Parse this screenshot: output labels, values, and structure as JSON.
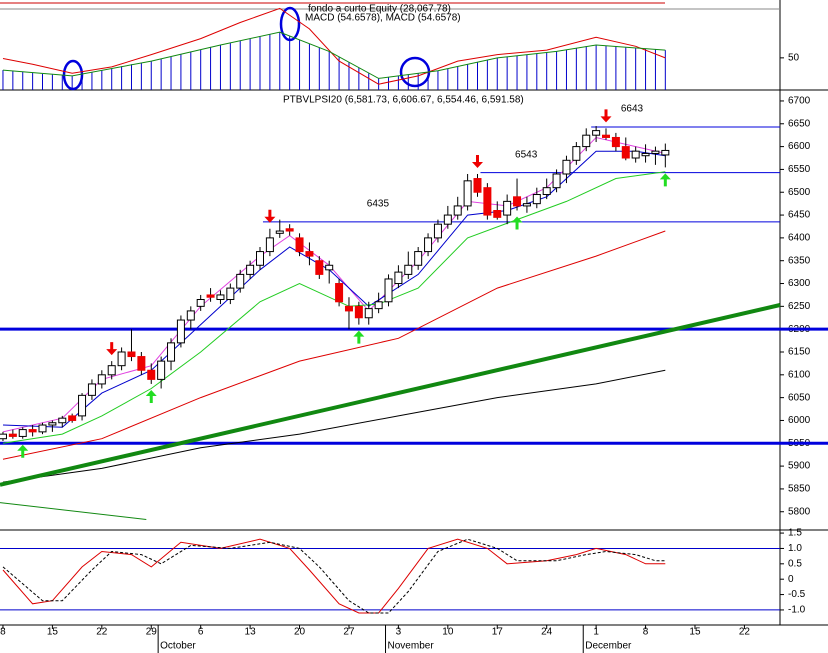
{
  "chart_data": [
    {
      "type": "macd",
      "legend_text": "fondo a curto Equity (28,067.78)",
      "title": "MACD (54.6578), MACD (54.6578)",
      "xlim": [
        -0.3,
        78.6
      ],
      "ylim": [
        0,
        140
      ],
      "yticks": [
        50
      ],
      "histogram": {
        "color": "#0000cc",
        "values": [
          31,
          30,
          28,
          27,
          25,
          24,
          23,
          22,
          25,
          28,
          31,
          34,
          37,
          40,
          42,
          45,
          49,
          52,
          56,
          60,
          63,
          67,
          70,
          73,
          77,
          80,
          83,
          87,
          90,
          84,
          78,
          72,
          66,
          60,
          52,
          43,
          35,
          26,
          18,
          20,
          22,
          24,
          26,
          28,
          30,
          33,
          37,
          40,
          43,
          47,
          50,
          52,
          53,
          55,
          57,
          58,
          60,
          63,
          65,
          68,
          70,
          69,
          68,
          66,
          65,
          64,
          63,
          62
        ]
      },
      "series": [
        {
          "color": "#dd0000",
          "x": [
            0,
            3,
            7,
            11,
            15,
            20,
            24,
            28,
            31,
            34,
            38,
            42,
            46,
            50,
            55,
            60,
            64,
            67
          ],
          "values": [
            49,
            40,
            26,
            36,
            55,
            80,
            105,
            127,
            95,
            45,
            9,
            22,
            45,
            55,
            62,
            82,
            68,
            50
          ]
        },
        {
          "color": "#118811",
          "x": [
            0,
            7,
            15,
            22,
            28,
            33,
            38,
            44,
            50,
            56,
            60,
            67
          ],
          "values": [
            31,
            22,
            45,
            70,
            90,
            60,
            18,
            30,
            50,
            60,
            70,
            62
          ]
        }
      ]
    },
    {
      "type": "candlestick",
      "title": "PTBVLPSI20 (6,581.73, 6,606.67, 6,554.46, 6,591.58)",
      "xlim": [
        -0.3,
        78.6
      ],
      "ylim": [
        5760,
        6724
      ],
      "yticks": [
        5800,
        5850,
        5900,
        5950,
        6000,
        6050,
        6100,
        6150,
        6200,
        6250,
        6300,
        6350,
        6400,
        6450,
        6500,
        6550,
        6600,
        6650,
        6700
      ],
      "ohlc": [
        [
          5960,
          5975,
          5955,
          5970
        ],
        [
          5970,
          5980,
          5960,
          5965
        ],
        [
          5965,
          5985,
          5960,
          5980
        ],
        [
          5980,
          5990,
          5965,
          5975
        ],
        [
          5975,
          5995,
          5970,
          5990
        ],
        [
          5990,
          6000,
          5975,
          5995
        ],
        [
          5995,
          6010,
          5985,
          6005
        ],
        [
          6010,
          6015,
          5995,
          6000
        ],
        [
          6010,
          6060,
          6000,
          6055
        ],
        [
          6055,
          6090,
          6045,
          6080
        ],
        [
          6080,
          6110,
          6070,
          6100
        ],
        [
          6100,
          6130,
          6090,
          6120
        ],
        [
          6120,
          6160,
          6110,
          6150
        ],
        [
          6150,
          6200,
          6130,
          6140
        ],
        [
          6140,
          6150,
          6100,
          6110
        ],
        [
          6110,
          6125,
          6080,
          6090
        ],
        [
          6090,
          6140,
          6070,
          6130
        ],
        [
          6130,
          6180,
          6110,
          6170
        ],
        [
          6170,
          6230,
          6160,
          6220
        ],
        [
          6220,
          6250,
          6200,
          6240
        ],
        [
          6250,
          6275,
          6240,
          6265
        ],
        [
          6275,
          6290,
          6260,
          6270
        ],
        [
          6265,
          6285,
          6255,
          6275
        ],
        [
          6265,
          6300,
          6255,
          6290
        ],
        [
          6290,
          6330,
          6280,
          6320
        ],
        [
          6320,
          6350,
          6310,
          6340
        ],
        [
          6340,
          6380,
          6330,
          6370
        ],
        [
          6370,
          6420,
          6360,
          6400
        ],
        [
          6410,
          6440,
          6400,
          6415
        ],
        [
          6420,
          6430,
          6405,
          6415
        ],
        [
          6400,
          6410,
          6360,
          6370
        ],
        [
          6370,
          6390,
          6340,
          6360
        ],
        [
          6350,
          6360,
          6310,
          6320
        ],
        [
          6330,
          6350,
          6300,
          6340
        ],
        [
          6300,
          6310,
          6250,
          6260
        ],
        [
          6250,
          6270,
          6200,
          6240
        ],
        [
          6250,
          6260,
          6210,
          6225
        ],
        [
          6225,
          6260,
          6210,
          6245
        ],
        [
          6245,
          6280,
          6235,
          6260
        ],
        [
          6260,
          6320,
          6250,
          6310
        ],
        [
          6300,
          6340,
          6290,
          6325
        ],
        [
          6320,
          6370,
          6310,
          6340
        ],
        [
          6340,
          6380,
          6330,
          6370
        ],
        [
          6370,
          6410,
          6360,
          6400
        ],
        [
          6400,
          6440,
          6390,
          6430
        ],
        [
          6430,
          6470,
          6420,
          6450
        ],
        [
          6450,
          6490,
          6440,
          6470
        ],
        [
          6470,
          6540,
          6460,
          6525
        ],
        [
          6530,
          6540,
          6490,
          6500
        ],
        [
          6510,
          6520,
          6440,
          6450
        ],
        [
          6460,
          6480,
          6440,
          6445
        ],
        [
          6450,
          6495,
          6430,
          6480
        ],
        [
          6490,
          6530,
          6460,
          6470
        ],
        [
          6470,
          6490,
          6455,
          6475
        ],
        [
          6475,
          6510,
          6465,
          6495
        ],
        [
          6495,
          6530,
          6485,
          6510
        ],
        [
          6510,
          6550,
          6500,
          6540
        ],
        [
          6540,
          6580,
          6520,
          6570
        ],
        [
          6570,
          6610,
          6560,
          6600
        ],
        [
          6600,
          6640,
          6590,
          6625
        ],
        [
          6625,
          6645,
          6610,
          6635
        ],
        [
          6625,
          6640,
          6615,
          6620
        ],
        [
          6620,
          6630,
          6590,
          6600
        ],
        [
          6600,
          6620,
          6570,
          6575
        ],
        [
          6575,
          6600,
          6565,
          6590
        ],
        [
          6580,
          6605,
          6565,
          6585
        ],
        [
          6585,
          6600,
          6560,
          6590
        ],
        [
          6581.73,
          6606.67,
          6554.46,
          6591.58
        ]
      ],
      "series": [
        {
          "color": "#e040e0",
          "x": [
            0,
            6,
            10,
            15,
            20,
            26,
            29,
            33,
            37,
            42,
            47,
            51,
            55,
            60,
            64,
            67
          ],
          "values": [
            5975,
            6005,
            6090,
            6120,
            6250,
            6360,
            6405,
            6340,
            6240,
            6350,
            6480,
            6470,
            6510,
            6620,
            6600,
            6585
          ]
        },
        {
          "color": "#0000cc",
          "x": [
            0,
            6,
            10,
            15,
            20,
            26,
            29,
            33,
            37,
            42,
            47,
            51,
            55,
            60,
            64,
            67
          ],
          "values": [
            5990,
            5985,
            6060,
            6110,
            6210,
            6330,
            6380,
            6330,
            6250,
            6320,
            6450,
            6460,
            6490,
            6590,
            6590,
            6580
          ]
        },
        {
          "color": "#22cc22",
          "x": [
            0,
            6,
            10,
            15,
            20,
            26,
            30,
            35,
            38,
            42,
            47,
            52,
            57,
            62,
            67
          ],
          "values": [
            5950,
            5970,
            6010,
            6070,
            6150,
            6260,
            6300,
            6250,
            6255,
            6290,
            6400,
            6440,
            6480,
            6530,
            6545
          ]
        },
        {
          "color": "#dd0000",
          "x": [
            0,
            10,
            20,
            30,
            40,
            50,
            60,
            67
          ],
          "values": [
            5915,
            5960,
            6050,
            6130,
            6180,
            6290,
            6360,
            6415
          ]
        },
        {
          "color": "#000000",
          "x": [
            0,
            10,
            20,
            30,
            40,
            50,
            60,
            67
          ],
          "values": [
            5865,
            5895,
            5940,
            5970,
            6010,
            6050,
            6080,
            6110
          ]
        },
        {
          "color": "#118811",
          "x": [
            -0.3,
            78.6
          ],
          "values": [
            5859,
            6253
          ],
          "width": 4
        },
        {
          "color": "#118811",
          "x": [
            -0.3,
            14.5
          ],
          "values": [
            5820,
            5783
          ]
        }
      ],
      "levels": [
        {
          "value": 6643,
          "label": "6643",
          "start": 59.5
        },
        {
          "value": 6543,
          "label": "6543",
          "start": 48.3
        },
        {
          "value": 6435,
          "label": "6435",
          "start": 26.3
        }
      ],
      "thick_levels": [
        6200,
        5950
      ],
      "level_color": "#0000dd",
      "signals": {
        "sell": [
          11,
          27,
          48,
          61
        ],
        "buy": [
          2,
          15,
          36,
          52,
          67
        ]
      }
    },
    {
      "type": "oscillator",
      "xlim": [
        -0.3,
        78.6
      ],
      "ylim": [
        -1.49,
        1.6
      ],
      "yticks": [
        1.5,
        {
          "value": 1,
          "label": "1.0"
        },
        0.5,
        0,
        -0.5,
        {
          "value": -1,
          "label": "-1.0"
        }
      ],
      "levels": [
        1,
        -1
      ],
      "series": [
        {
          "color": "#dd0000",
          "x": [
            0,
            3,
            5,
            8,
            10,
            13,
            15,
            18,
            22,
            26,
            29,
            31,
            34,
            36,
            38,
            40,
            43,
            46,
            49,
            51,
            55,
            58,
            60,
            63,
            65,
            67
          ],
          "values": [
            0.3,
            -0.8,
            -0.7,
            0.4,
            0.9,
            0.8,
            0.4,
            1.2,
            1.0,
            1.3,
            1.0,
            0.3,
            -0.8,
            -1.1,
            -1.1,
            -0.3,
            1.0,
            1.3,
            1.0,
            0.5,
            0.6,
            0.8,
            1.0,
            0.8,
            0.5,
            0.5
          ]
        },
        {
          "color": "#000000",
          "dash": true,
          "x": [
            0,
            4,
            6,
            9,
            11,
            14,
            16,
            19,
            23,
            27,
            30,
            32,
            35,
            37,
            39,
            41,
            44,
            47,
            50,
            52,
            56,
            59,
            61,
            64,
            66,
            67
          ],
          "values": [
            0.4,
            -0.7,
            -0.7,
            0.3,
            0.9,
            0.8,
            0.5,
            1.1,
            1.0,
            1.2,
            1.0,
            0.4,
            -0.7,
            -1.1,
            -1.1,
            -0.4,
            0.9,
            1.3,
            1.0,
            0.6,
            0.6,
            0.8,
            0.9,
            0.8,
            0.6,
            0.6
          ]
        }
      ],
      "xticks": [
        {
          "value": 0,
          "label": "8"
        },
        {
          "value": 5,
          "label": "15"
        },
        {
          "value": 10,
          "label": "22"
        },
        {
          "value": 15,
          "label": "29"
        },
        {
          "value": 20,
          "label": "6"
        },
        {
          "value": 25,
          "label": "13"
        },
        {
          "value": 30,
          "label": "20"
        },
        {
          "value": 35,
          "label": "27"
        },
        {
          "value": 40,
          "label": "3"
        },
        {
          "value": 45,
          "label": "10"
        },
        {
          "value": 50,
          "label": "17"
        },
        {
          "value": 55,
          "label": "24"
        },
        {
          "value": 60,
          "label": "1"
        },
        {
          "value": 65,
          "label": "8"
        },
        {
          "value": 70,
          "label": "15"
        },
        {
          "value": 75,
          "label": "22"
        }
      ],
      "month_labels": [
        {
          "value": 16,
          "label": "October"
        },
        {
          "value": 39,
          "label": "November"
        },
        {
          "value": 59,
          "label": "December"
        }
      ]
    }
  ]
}
